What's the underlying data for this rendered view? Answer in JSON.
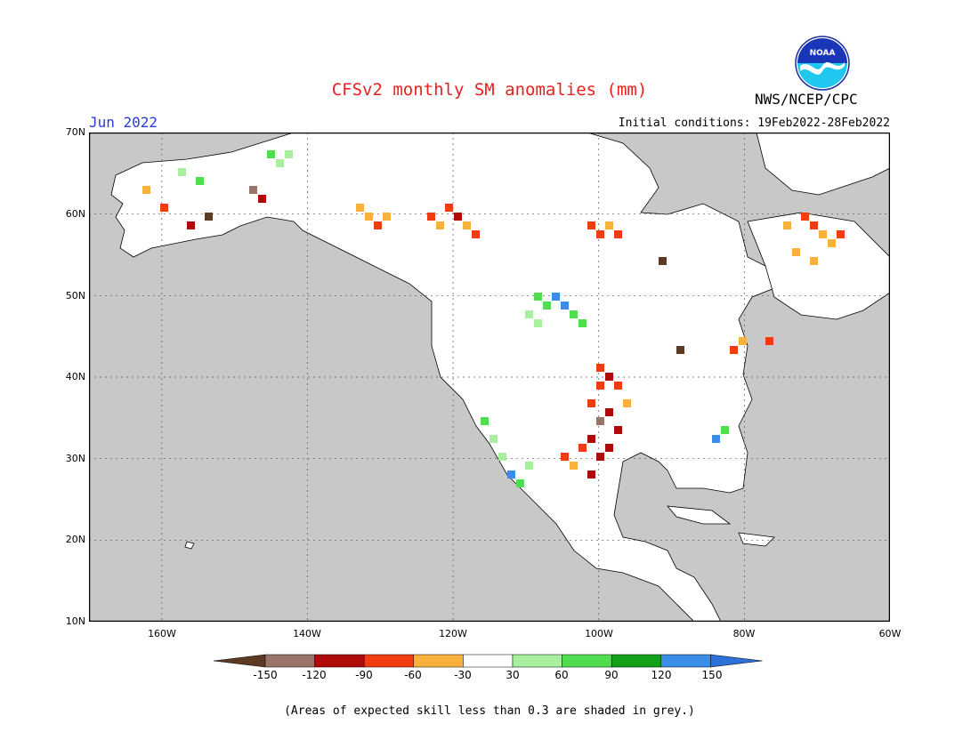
{
  "header": {
    "title": "CFSv2 monthly SM anomalies (mm)",
    "month": "Jun 2022",
    "initial_conditions": "Initial conditions: 19Feb2022-28Feb2022",
    "agency": "NWS/NCEP/CPC",
    "logo_text": "NOAA"
  },
  "axes": {
    "lat_labels": [
      "70N",
      "60N",
      "50N",
      "40N",
      "30N",
      "20N",
      "10N"
    ],
    "lon_labels": [
      "160W",
      "140W",
      "120W",
      "100W",
      "80W",
      "60W"
    ],
    "lat_values": [
      70,
      60,
      50,
      40,
      30,
      20,
      10
    ],
    "lon_values": [
      -160,
      -140,
      -120,
      -100,
      -80,
      -60
    ],
    "lon_range": [
      -170,
      -60
    ],
    "lat_range": [
      10,
      70
    ],
    "gridlines": "dotted"
  },
  "legend": {
    "labels": [
      "-150",
      "-120",
      "-90",
      "-60",
      "-30",
      "30",
      "60",
      "90",
      "120",
      "150"
    ],
    "colors": [
      "#5e3a24",
      "#9a7468",
      "#ae0a0a",
      "#f03c10",
      "#f8b23c",
      "#ffffff",
      "#a8f0a0",
      "#50de50",
      "#12a01a",
      "#3a8ee8",
      "#2c70d8"
    ],
    "unit": "mm"
  },
  "colors": {
    "land": "#ffffff",
    "ocean_grey": "#c8c8c8",
    "title_red": "#e8201e",
    "month_blue": "#2b3bd6"
  },
  "footnote": "(Areas of expected skill less than 0.3 are shaded in grey.)"
}
